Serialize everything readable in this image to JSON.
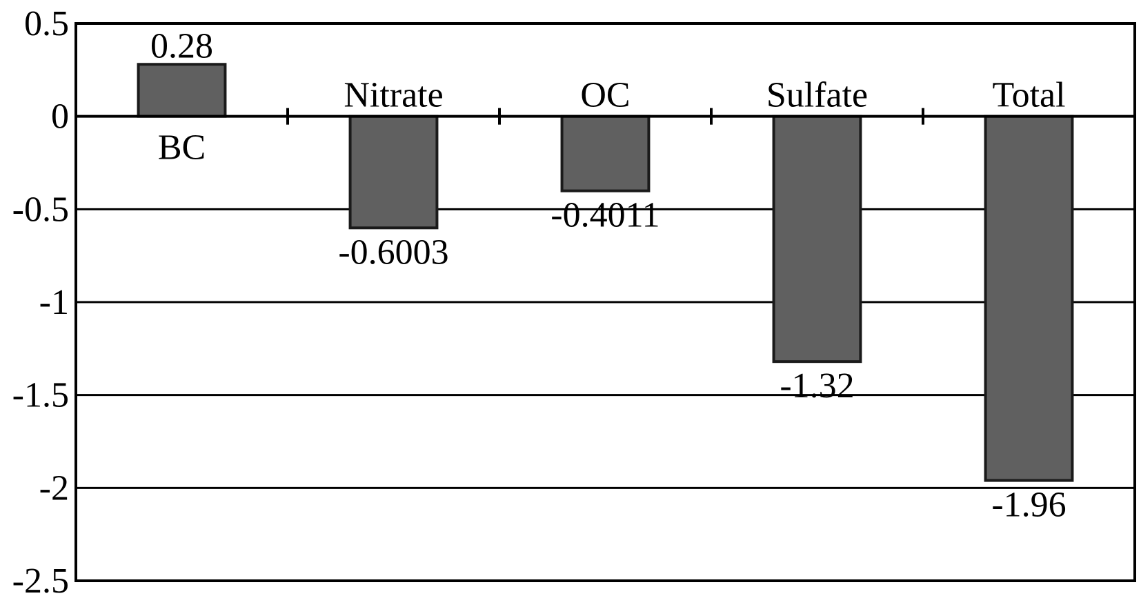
{
  "chart_data": {
    "type": "bar",
    "title": "",
    "xlabel": "",
    "ylabel": "",
    "categories": [
      "BC",
      "Nitrate",
      "OC",
      "Sulfate",
      "Total"
    ],
    "values": [
      0.28,
      -0.6003,
      -0.4011,
      -1.32,
      -1.96
    ],
    "data_labels": [
      "0.28",
      "-0.6003",
      "-0.4011",
      "-1.32",
      "-1.96"
    ],
    "ylim": [
      -2.5,
      0.5
    ],
    "yticks": [
      0.5,
      0,
      -0.5,
      -1,
      -1.5,
      -2,
      -2.5
    ],
    "ytick_labels": [
      "0.5",
      "0",
      "-0.5",
      "-1",
      "-1.5",
      "-2",
      "-2.5"
    ],
    "grid": true,
    "legend": "none",
    "colors": {
      "bar_fill": "#606060",
      "bar_stroke": "#1a1a1a",
      "grid": "#000000"
    }
  }
}
